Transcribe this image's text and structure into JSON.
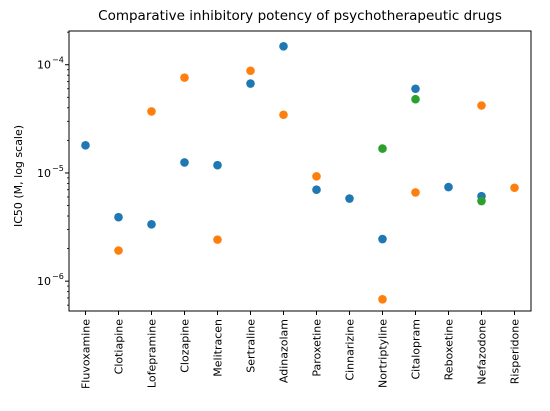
{
  "chart_data": {
    "type": "scatter",
    "title": "Comparative inhibitory potency of psychotherapeutic drugs",
    "xlabel": "",
    "ylabel": "IC50 (M, log scale)",
    "yscale": "log",
    "ylim": [
      5.3e-07,
      0.000205
    ],
    "grid": false,
    "legend": "none",
    "y_tick_labels": [
      {
        "value": 1e-06,
        "label": "10",
        "exp": "−6"
      },
      {
        "value": 1e-05,
        "label": "10",
        "exp": "−5"
      },
      {
        "value": 0.0001,
        "label": "10",
        "exp": "−4"
      }
    ],
    "categories": [
      "Fluvoxamine",
      "Clotiapine",
      "Lofepramine",
      "Clozapine",
      "Melitracen",
      "Sertraline",
      "Adinazolam",
      "Paroxetine",
      "Cinnarizine",
      "Nortriptyline",
      "Citalopram",
      "Reboxetine",
      "Nefazodone",
      "Risperidone"
    ],
    "series": [
      {
        "color": "#1f77b4",
        "values": [
          1.8e-05,
          3.9e-06,
          3.35e-06,
          1.25e-05,
          1.18e-05,
          6.7e-05,
          0.000148,
          7e-06,
          5.8e-06,
          2.45e-06,
          6e-05,
          7.4e-06,
          6.1e-06,
          null
        ]
      },
      {
        "color": "#ff7f0e",
        "values": [
          null,
          1.92e-06,
          3.7e-05,
          7.6e-05,
          2.42e-06,
          8.8e-05,
          3.45e-05,
          9.3e-06,
          null,
          6.8e-07,
          6.6e-06,
          null,
          4.2e-05,
          7.3e-06
        ]
      },
      {
        "color": "#2ca02c",
        "values": [
          null,
          null,
          null,
          null,
          null,
          null,
          null,
          null,
          null,
          1.68e-05,
          4.8e-05,
          null,
          5.5e-06,
          null
        ]
      }
    ]
  }
}
